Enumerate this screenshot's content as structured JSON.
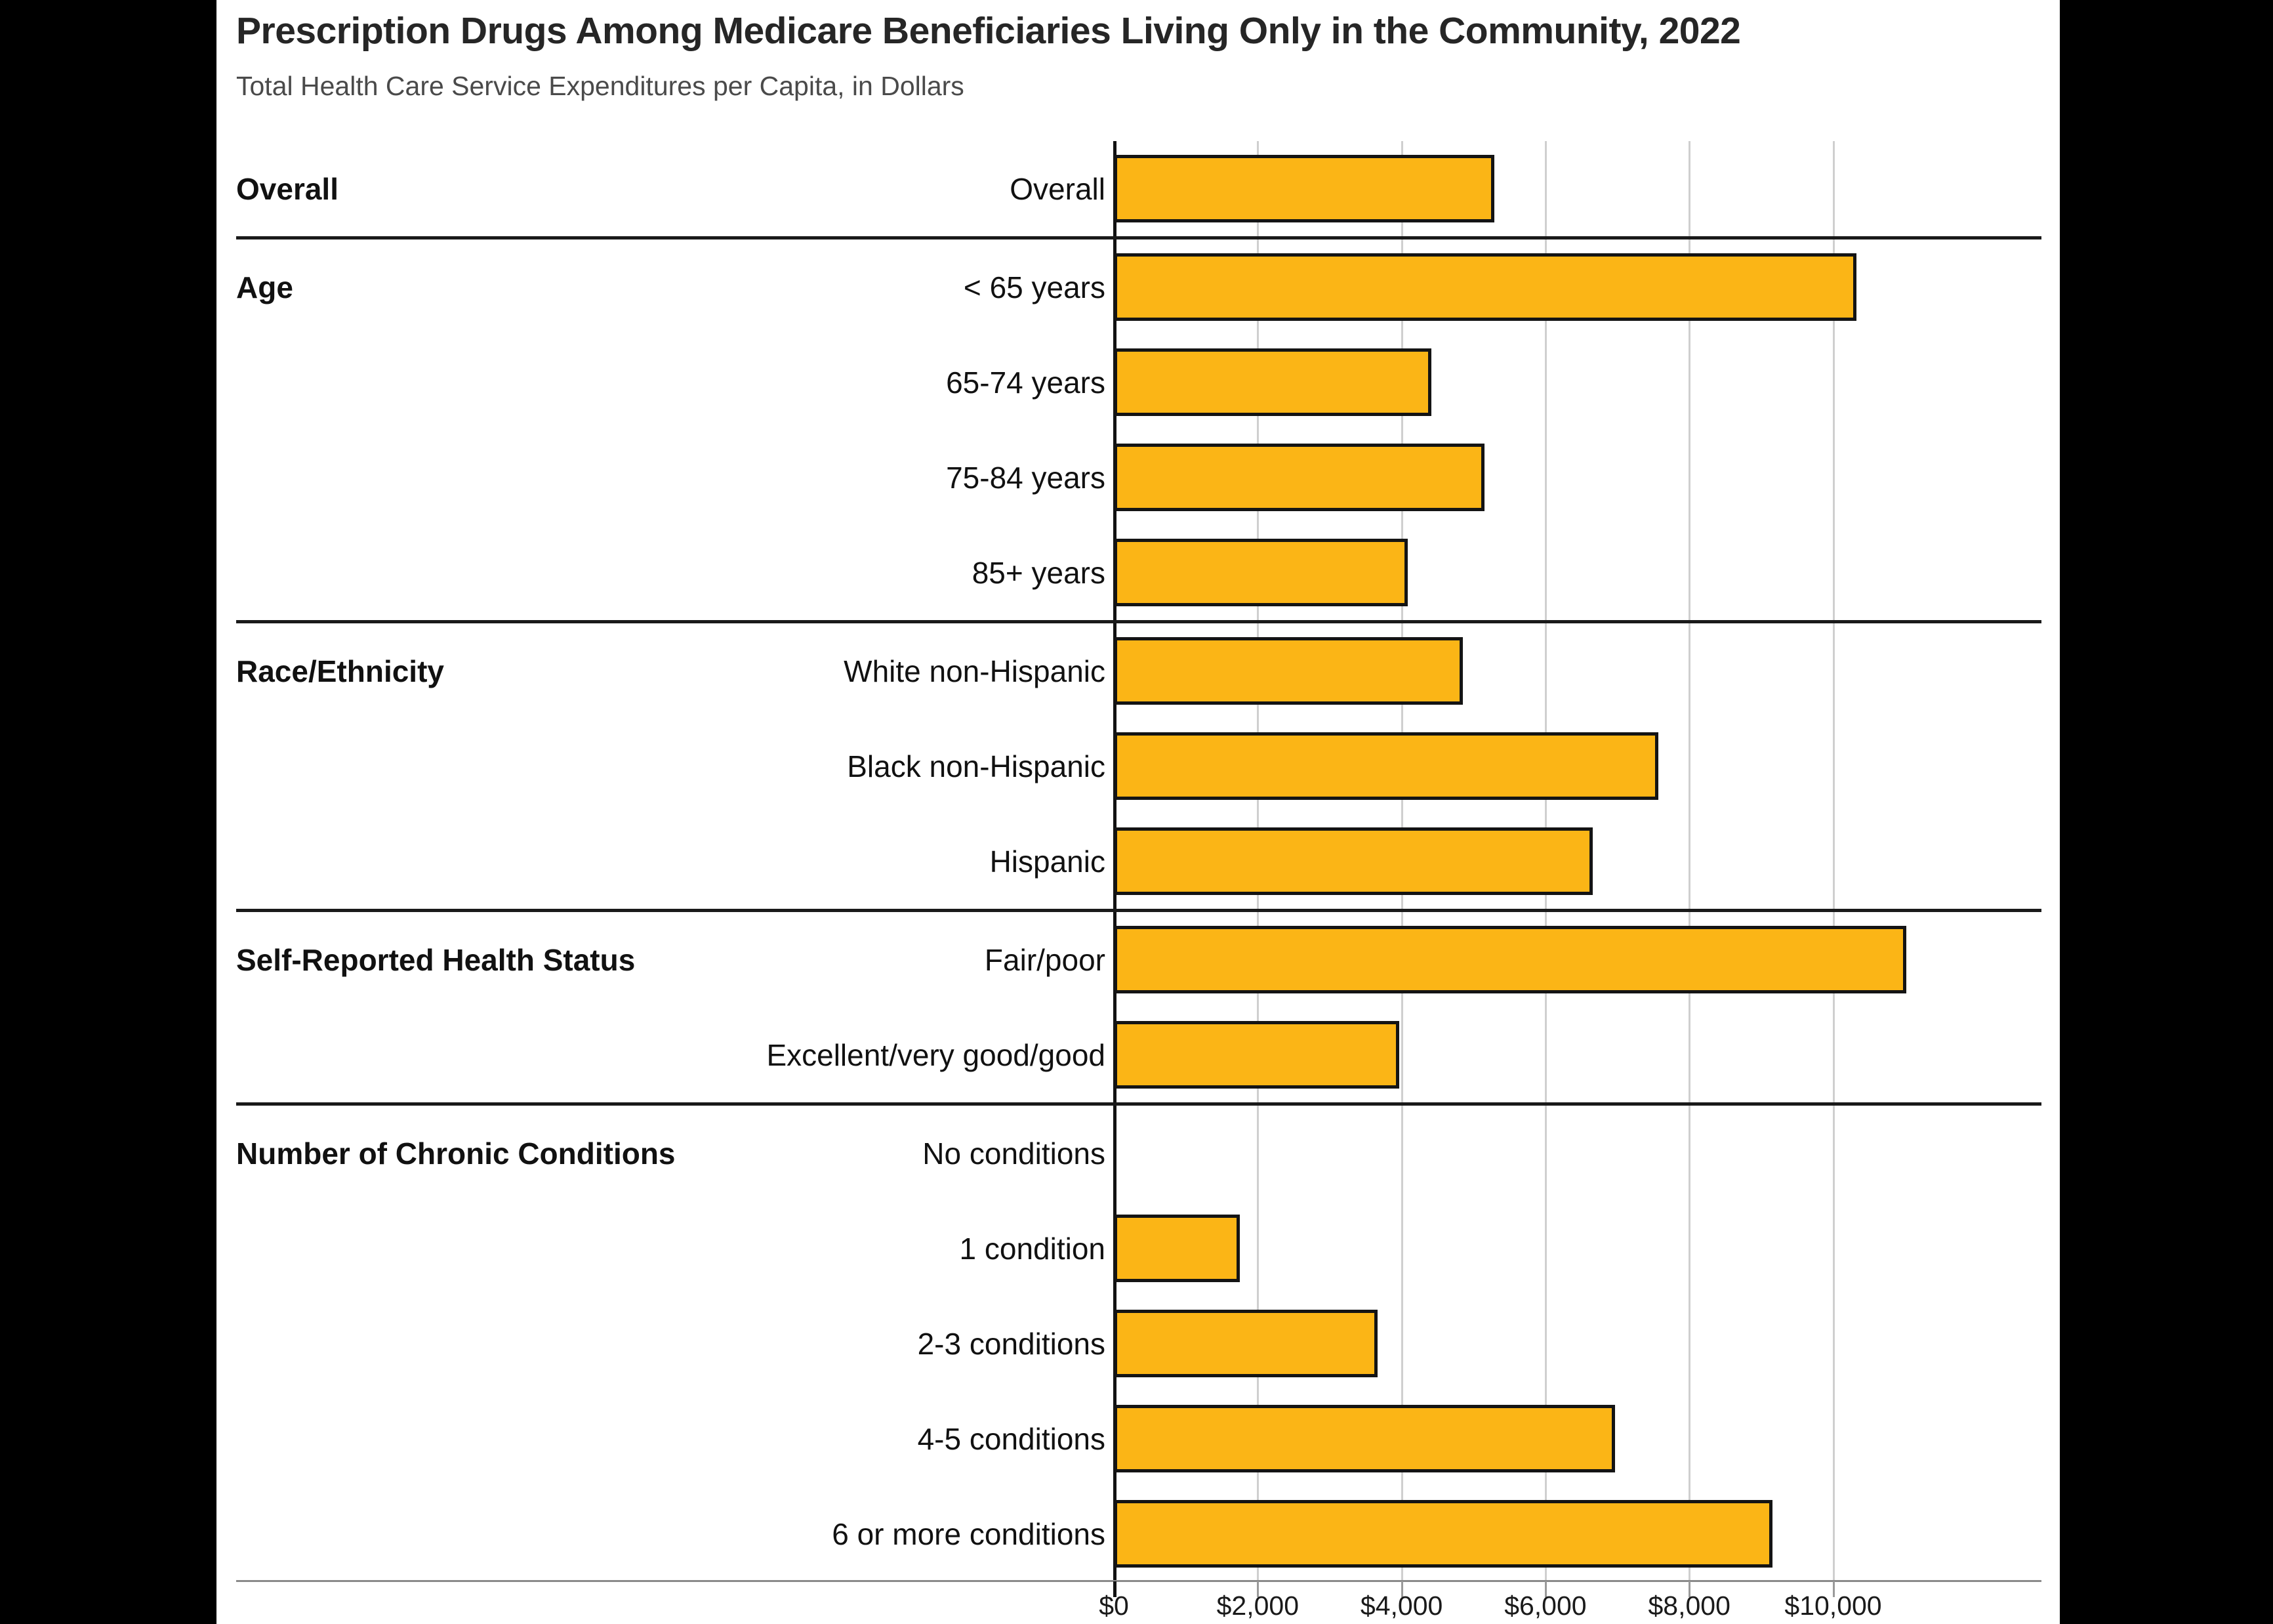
{
  "title": "Prescription Drugs Among Medicare Beneficiaries Living Only in the Community, 2022",
  "subtitle": "Total Health Care Service Expenditures per Capita, in Dollars",
  "colors": {
    "bar_fill": "#FBB516",
    "bar_outline": "#141414",
    "background": "#FFFFFF",
    "letterbox": "#000000",
    "gridline": "#CFCFCF",
    "text": "#111111",
    "subtitle_text": "#4A4A4A"
  },
  "chart_data": {
    "type": "bar",
    "orientation": "horizontal",
    "title": "Prescription Drugs Among Medicare Beneficiaries Living Only in the Community, 2022",
    "subtitle": "Total Health Care Service Expenditures per Capita, in Dollars",
    "xlabel": "Total Health Care Service Expenditures per Capita (Dollars)",
    "ylabel": "",
    "xlim": [
      0,
      12800
    ],
    "grid": true,
    "legend": "none",
    "tick_values": [
      0,
      2000,
      4000,
      6000,
      8000,
      10000
    ],
    "tick_labels": [
      "$0",
      "$2,000",
      "$4,000",
      "$6,000",
      "$8,000",
      "$10,000"
    ],
    "sections": [
      {
        "label": "Overall",
        "rows": [
          {
            "label": "Overall",
            "value": 5290
          }
        ]
      },
      {
        "label": "Age",
        "rows": [
          {
            "label": "< 65 years",
            "value": 10320
          },
          {
            "label": "65-74 years",
            "value": 4410
          },
          {
            "label": "75-84 years",
            "value": 5150
          },
          {
            "label": "85+ years",
            "value": 4090
          }
        ]
      },
      {
        "label": "Race/Ethnicity",
        "rows": [
          {
            "label": "White non-Hispanic",
            "value": 4850
          },
          {
            "label": "Black non-Hispanic",
            "value": 7570
          },
          {
            "label": "Hispanic",
            "value": 6660
          }
        ]
      },
      {
        "label": "Self-Reported Health Status",
        "rows": [
          {
            "label": "Fair/poor",
            "value": 11020
          },
          {
            "label": "Excellent/very good/good",
            "value": 3970
          }
        ]
      },
      {
        "label": "Number of Chronic Conditions",
        "rows": [
          {
            "label": "No conditions",
            "value": 0
          },
          {
            "label": "1 condition",
            "value": 1750
          },
          {
            "label": "2-3 conditions",
            "value": 3670
          },
          {
            "label": "4-5 conditions",
            "value": 6970
          },
          {
            "label": "6 or more conditions",
            "value": 9160
          }
        ]
      }
    ]
  }
}
